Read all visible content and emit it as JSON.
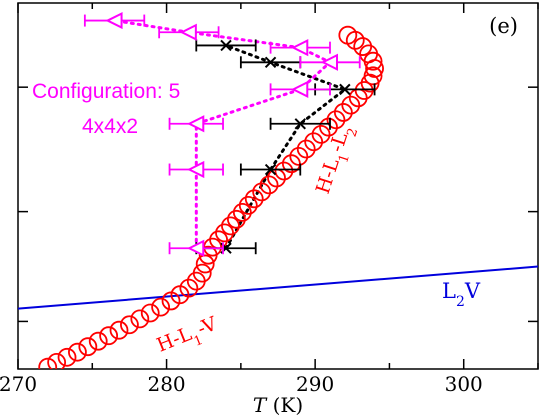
{
  "chart_data": {
    "type": "scatter",
    "panel_label": "(e)",
    "xlabel": "T (K)",
    "xlabel_italic": "T",
    "xlabel_unit": " (K)",
    "xlim": [
      270,
      305
    ],
    "xticks": [
      270,
      280,
      290,
      300
    ],
    "ylim": [
      0,
      1
    ],
    "y_tick_marks": [
      0.13,
      0.43,
      0.77
    ],
    "annotations": {
      "config_line1": "Configuration: 5",
      "config_line2": "4x4x2",
      "hl1l2": "H-L1-L2",
      "hl1v": "H-L1-V",
      "l2v": "L2V"
    },
    "colors": {
      "red": "#ff0000",
      "black": "#000000",
      "magenta": "#ff00ff",
      "blue": "#0000dd"
    },
    "series": [
      {
        "name": "H-L1-V / H-L1-L2",
        "marker": "circle",
        "color": "#ff0000",
        "points": [
          [
            272.0,
            0.005
          ],
          [
            272.6,
            0.018
          ],
          [
            273.3,
            0.032
          ],
          [
            274.0,
            0.046
          ],
          [
            274.7,
            0.061
          ],
          [
            275.4,
            0.076
          ],
          [
            276.1,
            0.091
          ],
          [
            276.8,
            0.106
          ],
          [
            277.5,
            0.121
          ],
          [
            278.2,
            0.137
          ],
          [
            278.9,
            0.153
          ],
          [
            279.6,
            0.169
          ],
          [
            280.3,
            0.186
          ],
          [
            280.9,
            0.203
          ],
          [
            281.5,
            0.221
          ],
          [
            282.0,
            0.24
          ],
          [
            282.4,
            0.262
          ],
          [
            282.6,
            0.287
          ],
          [
            282.8,
            0.311
          ],
          [
            283.1,
            0.333
          ],
          [
            283.5,
            0.353
          ],
          [
            283.9,
            0.372
          ],
          [
            284.3,
            0.391
          ],
          [
            284.7,
            0.409
          ],
          [
            285.1,
            0.428
          ],
          [
            285.5,
            0.447
          ],
          [
            285.9,
            0.465
          ],
          [
            286.4,
            0.484
          ],
          [
            286.9,
            0.503
          ],
          [
            287.4,
            0.522
          ],
          [
            287.9,
            0.541
          ],
          [
            288.4,
            0.561
          ],
          [
            288.9,
            0.581
          ],
          [
            289.4,
            0.601
          ],
          [
            289.9,
            0.621
          ],
          [
            290.4,
            0.641
          ],
          [
            290.9,
            0.661
          ],
          [
            291.4,
            0.681
          ],
          [
            291.9,
            0.701
          ],
          [
            292.4,
            0.721
          ],
          [
            292.9,
            0.741
          ],
          [
            293.3,
            0.761
          ],
          [
            293.7,
            0.781
          ],
          [
            293.9,
            0.801
          ],
          [
            294.0,
            0.821
          ],
          [
            293.9,
            0.841
          ],
          [
            293.6,
            0.861
          ],
          [
            293.2,
            0.881
          ],
          [
            292.7,
            0.898
          ],
          [
            292.2,
            0.912
          ]
        ]
      },
      {
        "name": "L2V",
        "marker": "line",
        "color": "#0000dd",
        "points": [
          [
            270,
            0.165
          ],
          [
            305,
            0.28
          ]
        ]
      },
      {
        "name": "black",
        "marker": "x",
        "color": "#000000",
        "points": [
          [
            284.0,
            0.33,
            2.0
          ],
          [
            287.0,
            0.545,
            2.0
          ],
          [
            289.0,
            0.67,
            2.0
          ],
          [
            292.0,
            0.764,
            2.0
          ],
          [
            287.0,
            0.838,
            2.0
          ],
          [
            284.0,
            0.884,
            2.0
          ]
        ]
      },
      {
        "name": "magenta",
        "marker": "triangle-left",
        "color": "#ff00ff",
        "points": [
          [
            282.0,
            0.33,
            1.8
          ],
          [
            282.0,
            0.545,
            1.8
          ],
          [
            282.0,
            0.67,
            1.8
          ],
          [
            289.0,
            0.764,
            2.0
          ],
          [
            291.0,
            0.838,
            2.0
          ],
          [
            289.0,
            0.878,
            2.0
          ],
          [
            281.5,
            0.92,
            2.0
          ],
          [
            276.5,
            0.952,
            2.0
          ]
        ]
      }
    ]
  }
}
